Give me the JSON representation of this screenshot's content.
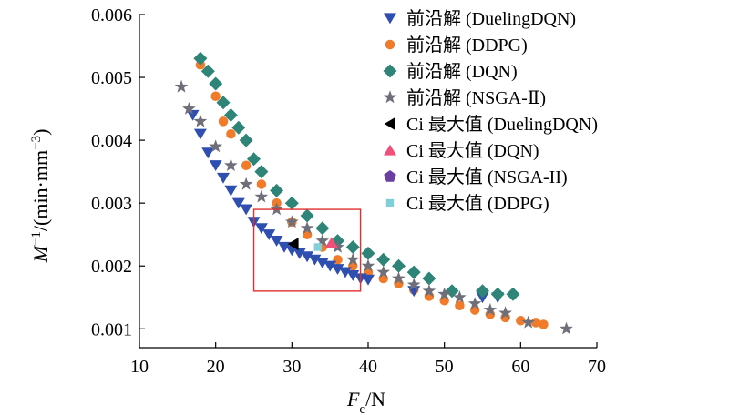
{
  "chart_data": {
    "type": "scatter",
    "xlabel": {
      "var": "F",
      "sub": "c",
      "unit": "/N"
    },
    "ylabel": {
      "var": "M",
      "sup": "−1",
      "unit": "/(min·mm",
      "unit_sup": "−3",
      "close": ")"
    },
    "xlim": [
      10,
      70
    ],
    "ylim": [
      0.0007,
      0.006
    ],
    "xticks": [
      "10",
      "20",
      "30",
      "40",
      "50",
      "60",
      "70"
    ],
    "yticks": [
      "0.001",
      "0.002",
      "0.003",
      "0.004",
      "0.005",
      "0.006"
    ],
    "grid": false,
    "legend_position": "top-right",
    "highlight_box": {
      "x": [
        25,
        39
      ],
      "y": [
        0.0016,
        0.0029
      ],
      "color": "#e03030"
    },
    "series": [
      {
        "name": "前沿解 (DuelingDQN)",
        "marker": "triangle-down",
        "color": "#2f4fb0",
        "x": [
          17,
          18,
          19,
          20,
          21,
          22,
          23,
          24,
          25,
          26,
          27,
          28,
          29,
          30,
          31,
          32,
          33,
          34,
          35,
          36,
          37,
          38,
          39,
          40,
          46,
          55,
          57
        ],
        "y": [
          0.0044,
          0.0041,
          0.0038,
          0.0036,
          0.0034,
          0.0032,
          0.003,
          0.0029,
          0.0027,
          0.0026,
          0.0025,
          0.0024,
          0.0023,
          0.00225,
          0.0022,
          0.00215,
          0.0021,
          0.00205,
          0.002,
          0.00195,
          0.0019,
          0.00185,
          0.0018,
          0.00178,
          0.0016,
          0.0015,
          0.0015
        ]
      },
      {
        "name": "前沿解 (DDPG)",
        "marker": "circle",
        "color": "#f07b2a",
        "x": [
          18,
          19,
          20,
          21,
          22,
          24,
          26,
          28,
          30,
          32,
          34,
          36,
          38,
          40,
          42,
          44,
          46,
          48,
          50,
          52,
          54,
          56,
          58,
          60,
          62,
          63
        ],
        "y": [
          0.0052,
          0.0051,
          0.0047,
          0.0043,
          0.0041,
          0.0036,
          0.0033,
          0.003,
          0.0027,
          0.0025,
          0.0023,
          0.0021,
          0.002,
          0.0019,
          0.0018,
          0.00172,
          0.00162,
          0.00152,
          0.00145,
          0.00137,
          0.0013,
          0.00123,
          0.00118,
          0.00113,
          0.0011,
          0.00107
        ]
      },
      {
        "name": "前沿解 (DQN)",
        "marker": "diamond",
        "color": "#2e8577",
        "x": [
          18,
          19,
          20,
          21,
          22,
          23,
          24,
          25,
          26,
          28,
          30,
          32,
          34,
          36,
          38,
          40,
          42,
          44,
          46,
          48,
          51,
          55,
          57,
          59
        ],
        "y": [
          0.0053,
          0.0051,
          0.0049,
          0.0046,
          0.0044,
          0.0042,
          0.004,
          0.0037,
          0.0035,
          0.0032,
          0.003,
          0.0028,
          0.0026,
          0.0024,
          0.0023,
          0.0022,
          0.0021,
          0.002,
          0.0019,
          0.0018,
          0.0016,
          0.0016,
          0.00155,
          0.00155
        ]
      },
      {
        "name": "前沿解 (NSGA-Ⅱ)",
        "marker": "star",
        "color": "#6f6f7a",
        "x": [
          15.5,
          16.5,
          18,
          20,
          22,
          24,
          26,
          28,
          30,
          32,
          34,
          36,
          38,
          40,
          42,
          44,
          46,
          48,
          50,
          52,
          54,
          56,
          58,
          61,
          66
        ],
        "y": [
          0.00485,
          0.0045,
          0.0043,
          0.0039,
          0.0036,
          0.0033,
          0.0031,
          0.0029,
          0.0027,
          0.0026,
          0.0024,
          0.0023,
          0.0021,
          0.002,
          0.0019,
          0.0018,
          0.0017,
          0.0016,
          0.00155,
          0.0015,
          0.0014,
          0.0013,
          0.00125,
          0.0011,
          0.001
        ]
      },
      {
        "name": "Ci 最大值 (DuelingDQN)",
        "marker": "triangle-left",
        "color": "#000000",
        "x": [
          30.2
        ],
        "y": [
          0.00235
        ]
      },
      {
        "name": "Ci 最大值 (DQN)",
        "marker": "triangle-up",
        "color": "#f0507a",
        "x": [
          35.2
        ],
        "y": [
          0.00237
        ]
      },
      {
        "name": "Ci 最大值 (NSGA-II)",
        "marker": "pentagon",
        "color": "#6a3fa0",
        "x": [],
        "y": []
      },
      {
        "name": "Ci 最大值 (DDPG)",
        "marker": "square",
        "color": "#7fd0d8",
        "x": [
          33.4
        ],
        "y": [
          0.0023
        ]
      }
    ]
  }
}
